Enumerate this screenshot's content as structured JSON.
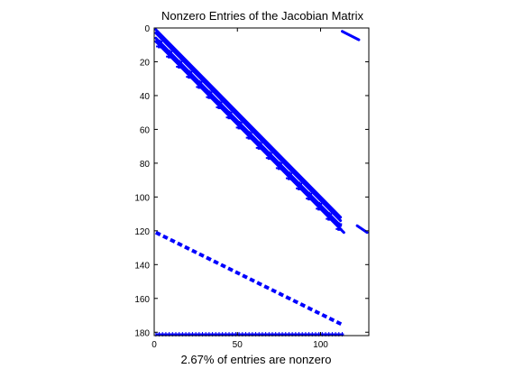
{
  "chart_data": {
    "type": "scatter",
    "title": "Nonzero Entries of the Jacobian Matrix",
    "xlabel": "2.67% of entries are nonzero",
    "ylabel": "",
    "xlim": [
      0,
      129
    ],
    "ylim": [
      0,
      182
    ],
    "y_reversed": true,
    "grid": false,
    "legend": "none",
    "marker": "*",
    "color": "#0000ff",
    "xticks": [
      0,
      50,
      100
    ],
    "yticks": [
      0,
      20,
      40,
      60,
      80,
      100,
      120,
      140,
      160,
      180
    ],
    "series": [
      {
        "kind": "diagonal",
        "x": [
          1,
          112
        ],
        "y": [
          1,
          112
        ]
      },
      {
        "kind": "diagonal",
        "x": [
          1,
          112
        ],
        "y": [
          3,
          114
        ]
      },
      {
        "kind": "diagonal",
        "x": [
          1,
          112
        ],
        "y": [
          6,
          117
        ]
      },
      {
        "kind": "diagonal",
        "x": [
          1,
          114
        ],
        "y": [
          8,
          121
        ]
      },
      {
        "kind": "diagonal",
        "x": [
          113,
          123
        ],
        "y": [
          2,
          7
        ]
      },
      {
        "kind": "diagonal",
        "x": [
          122,
          128
        ],
        "y": [
          117,
          121
        ]
      },
      {
        "kind": "steps",
        "x0": 3,
        "x1": 115,
        "y_start": 7,
        "dx": 6,
        "dy": 6,
        "steps": 19,
        "height": 5
      },
      {
        "kind": "dashed",
        "x": [
          1,
          114
        ],
        "y": [
          121,
          176
        ]
      },
      {
        "kind": "row",
        "x": [
          1,
          114
        ],
        "y": [
          182,
          182
        ]
      }
    ]
  }
}
